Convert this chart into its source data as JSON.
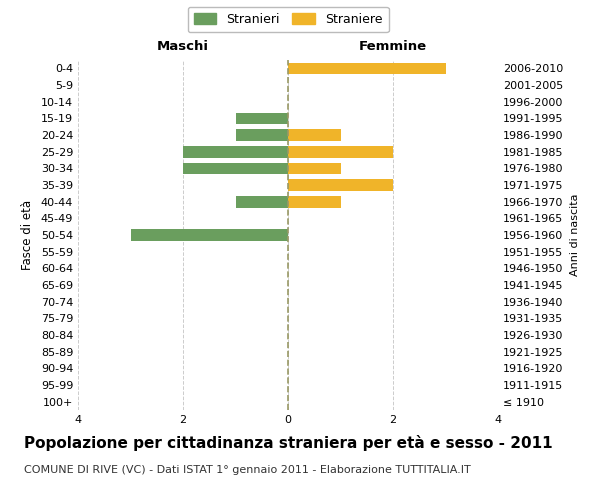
{
  "age_groups": [
    "0-4",
    "5-9",
    "10-14",
    "15-19",
    "20-24",
    "25-29",
    "30-34",
    "35-39",
    "40-44",
    "45-49",
    "50-54",
    "55-59",
    "60-64",
    "65-69",
    "70-74",
    "75-79",
    "80-84",
    "85-89",
    "90-94",
    "95-99",
    "100+"
  ],
  "birth_years": [
    "2006-2010",
    "2001-2005",
    "1996-2000",
    "1991-1995",
    "1986-1990",
    "1981-1985",
    "1976-1980",
    "1971-1975",
    "1966-1970",
    "1961-1965",
    "1956-1960",
    "1951-1955",
    "1946-1950",
    "1941-1945",
    "1936-1940",
    "1931-1935",
    "1926-1930",
    "1921-1925",
    "1916-1920",
    "1911-1915",
    "≤ 1910"
  ],
  "maschi": [
    0,
    0,
    0,
    1,
    1,
    2,
    2,
    0,
    1,
    0,
    3,
    0,
    0,
    0,
    0,
    0,
    0,
    0,
    0,
    0,
    0
  ],
  "femmine": [
    3,
    0,
    0,
    0,
    1,
    2,
    1,
    2,
    1,
    0,
    0,
    0,
    0,
    0,
    0,
    0,
    0,
    0,
    0,
    0,
    0
  ],
  "maschi_color": "#6a9e5e",
  "femmine_color": "#f0b429",
  "title": "Popolazione per cittadinanza straniera per età e sesso - 2011",
  "subtitle": "COMUNE DI RIVE (VC) - Dati ISTAT 1° gennaio 2011 - Elaborazione TUTTITALIA.IT",
  "header_left": "Maschi",
  "header_right": "Femmine",
  "ylabel_left": "Fasce di età",
  "ylabel_right": "Anni di nascita",
  "legend_maschi": "Stranieri",
  "legend_femmine": "Straniere",
  "xlim": 4,
  "background_color": "#ffffff",
  "grid_color": "#cccccc",
  "dashed_line_color": "#999966",
  "title_fontsize": 11,
  "subtitle_fontsize": 8,
  "bar_height": 0.7,
  "tick_fontsize": 8
}
